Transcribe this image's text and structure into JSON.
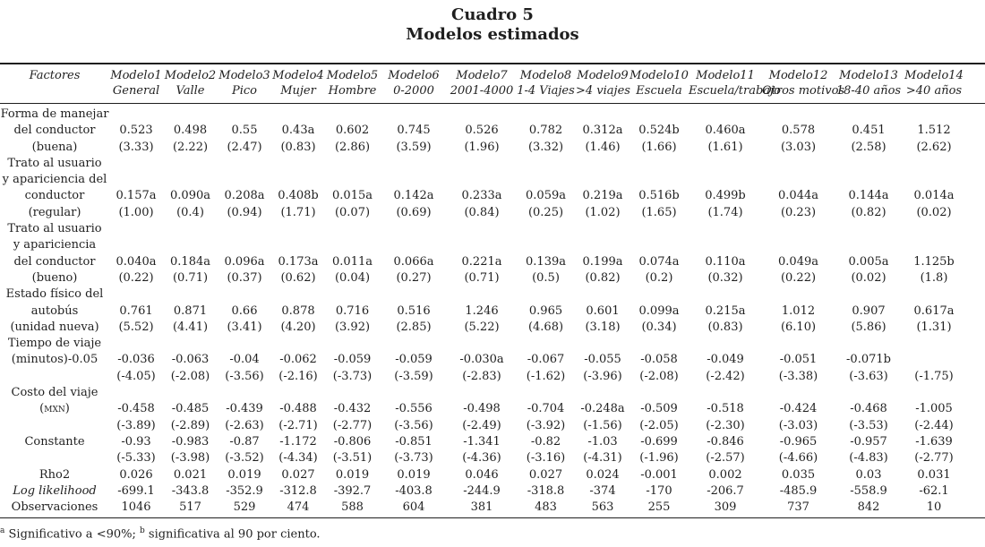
{
  "title": {
    "number": "Cuadro 5",
    "name": "Modelos estimados"
  },
  "table": {
    "factores_header": "Factores",
    "models": [
      {
        "name": "Modelo1",
        "sub": "General"
      },
      {
        "name": "Modelo2",
        "sub": "Valle"
      },
      {
        "name": "Modelo3",
        "sub": "Pico"
      },
      {
        "name": "Modelo4",
        "sub": "Mujer"
      },
      {
        "name": "Modelo5",
        "sub": "Hombre"
      },
      {
        "name": "Modelo6",
        "sub": "0-2000"
      },
      {
        "name": "Modelo7",
        "sub": "2001-4000"
      },
      {
        "name": "Modelo8",
        "sub": "1-4 Viajes"
      },
      {
        "name": "Modelo9",
        "sub": ">4 viajes"
      },
      {
        "name": "Modelo10",
        "sub": "Escuela"
      },
      {
        "name": "Modelo11",
        "sub": "Escuela/trabajo"
      },
      {
        "name": "Modelo12",
        "sub": "Otros motivos"
      },
      {
        "name": "Modelo13",
        "sub": "18-40 años"
      },
      {
        "name": "Modelo14",
        "sub": ">40 años"
      }
    ],
    "rows": [
      {
        "label": "Forma de manejar",
        "values": []
      },
      {
        "label": "del conductor",
        "values": [
          "0.523",
          "0.498",
          "0.55",
          "0.43a",
          "0.602",
          "0.745",
          "0.526",
          "0.782",
          "0.312a",
          "0.524b",
          "0.460a",
          "0.578",
          "0.451",
          "1.512"
        ]
      },
      {
        "label": "(buena)",
        "values": [
          "(3.33)",
          "(2.22)",
          "(2.47)",
          "(0.83)",
          "(2.86)",
          "(3.59)",
          "(1.96)",
          "(3.32)",
          "(1.46)",
          "(1.66)",
          "(1.61)",
          "(3.03)",
          "(2.58)",
          "(2.62)"
        ]
      },
      {
        "label": "Trato al usuario",
        "values": []
      },
      {
        "label": "y apariciencia del",
        "values": []
      },
      {
        "label": "conductor",
        "values": [
          "0.157a",
          "0.090a",
          "0.208a",
          "0.408b",
          "0.015a",
          "0.142a",
          "0.233a",
          "0.059a",
          "0.219a",
          "0.516b",
          "0.499b",
          "0.044a",
          "0.144a",
          "0.014a"
        ]
      },
      {
        "label": "(regular)",
        "values": [
          "(1.00)",
          "(0.4)",
          "(0.94)",
          "(1.71)",
          "(0.07)",
          "(0.69)",
          "(0.84)",
          "(0.25)",
          "(1.02)",
          "(1.65)",
          "(1.74)",
          "(0.23)",
          "(0.82)",
          "(0.02)"
        ]
      },
      {
        "label": "Trato al usuario",
        "values": []
      },
      {
        "label": "y apariciencia",
        "values": []
      },
      {
        "label": "del conductor",
        "values": [
          "0.040a",
          "0.184a",
          "0.096a",
          "0.173a",
          "0.011a",
          "0.066a",
          "0.221a",
          "0.139a",
          "0.199a",
          "0.074a",
          "0.110a",
          "0.049a",
          "0.005a",
          "1.125b"
        ]
      },
      {
        "label": "(bueno)",
        "values": [
          "(0.22)",
          "(0.71)",
          "(0.37)",
          "(0.62)",
          "(0.04)",
          "(0.27)",
          "(0.71)",
          "(0.5)",
          "(0.82)",
          "(0.2)",
          "(0.32)",
          "(0.22)",
          "(0.02)",
          "(1.8)"
        ]
      },
      {
        "label": "Estado físico del",
        "values": []
      },
      {
        "label": "autobús",
        "values": [
          "0.761",
          "0.871",
          "0.66",
          "0.878",
          "0.716",
          "0.516",
          "1.246",
          "0.965",
          "0.601",
          "0.099a",
          "0.215a",
          "1.012",
          "0.907",
          "0.617a"
        ]
      },
      {
        "label": "(unidad nueva)",
        "values": [
          "(5.52)",
          "(4.41)",
          "(3.41)",
          "(4.20)",
          "(3.92)",
          "(2.85)",
          "(5.22)",
          "(4.68)",
          "(3.18)",
          "(0.34)",
          "(0.83)",
          "(6.10)",
          "(5.86)",
          "(1.31)"
        ]
      },
      {
        "label": "Tiempo de viaje",
        "values": []
      },
      {
        "label": "(minutos)-0.05",
        "values": [
          "-0.036",
          "-0.063",
          "-0.04",
          "-0.062",
          "-0.059",
          "-0.059",
          "-0.030a",
          "-0.067",
          "-0.055",
          "-0.058",
          "-0.049",
          "-0.051",
          "-0.071b",
          ""
        ]
      },
      {
        "label": "",
        "values": [
          "(-4.05)",
          "(-2.08)",
          "(-3.56)",
          "(-2.16)",
          "(-3.73)",
          "(-3.59)",
          "(-2.83)",
          "(-1.62)",
          "(-3.96)",
          "(-2.08)",
          "(-2.42)",
          "(-3.38)",
          "(-3.63)",
          "(-1.75)"
        ]
      },
      {
        "label": "Costo del viaje",
        "values": []
      },
      {
        "label": "(mxn)",
        "style": "smallcaps",
        "values": [
          "-0.458",
          "-0.485",
          "-0.439",
          "-0.488",
          "-0.432",
          "-0.556",
          "-0.498",
          "-0.704",
          "-0.248a",
          "-0.509",
          "-0.518",
          "-0.424",
          "-0.468",
          "-1.005"
        ]
      },
      {
        "label": "",
        "values": [
          "(-3.89)",
          "(-2.89)",
          "(-2.63)",
          "(-2.71)",
          "(-2.77)",
          "(-3.56)",
          "(-2.49)",
          "(-3.92)",
          "(-1.56)",
          "(-2.05)",
          "(-2.30)",
          "(-3.03)",
          "(-3.53)",
          "(-2.44)"
        ]
      },
      {
        "label": "Constante",
        "values": [
          "-0.93",
          "-0.983",
          "-0.87",
          "-1.172",
          "-0.806",
          "-0.851",
          "-1.341",
          "-0.82",
          "-1.03",
          "-0.699",
          "-0.846",
          "-0.965",
          "-0.957",
          "-1.639"
        ]
      },
      {
        "label": "",
        "values": [
          "(-5.33)",
          "(-3.98)",
          "(-3.52)",
          "(-4.34)",
          "(-3.51)",
          "(-3.73)",
          "(-4.36)",
          "(-3.16)",
          "(-4.31)",
          "(-1.96)",
          "(-2.57)",
          "(-4.66)",
          "(-4.83)",
          "(-2.77)"
        ]
      },
      {
        "label": "Rho2",
        "values": [
          "0.026",
          "0.021",
          "0.019",
          "0.027",
          "0.019",
          "0.019",
          "0.046",
          "0.027",
          "0.024",
          "-0.001",
          "0.002",
          "0.035",
          "0.03",
          "0.031"
        ]
      },
      {
        "label": "Log likelihood",
        "style": "italic",
        "values": [
          "-699.1",
          "-343.8",
          "-352.9",
          "-312.8",
          "-392.7",
          "-403.8",
          "-244.9",
          "-318.8",
          "-374",
          "-170",
          "-206.7",
          "-485.9",
          "-558.9",
          "-62.1"
        ]
      },
      {
        "label": "Observaciones",
        "values": [
          "1046",
          "517",
          "529",
          "474",
          "588",
          "604",
          "381",
          "483",
          "563",
          "255",
          "309",
          "737",
          "842",
          "10"
        ]
      }
    ]
  },
  "footnote": {
    "marker_a": "a",
    "text_a": " Significativo a <90%; ",
    "marker_b": "b",
    "text_b": " significativa al 90 por ciento."
  }
}
